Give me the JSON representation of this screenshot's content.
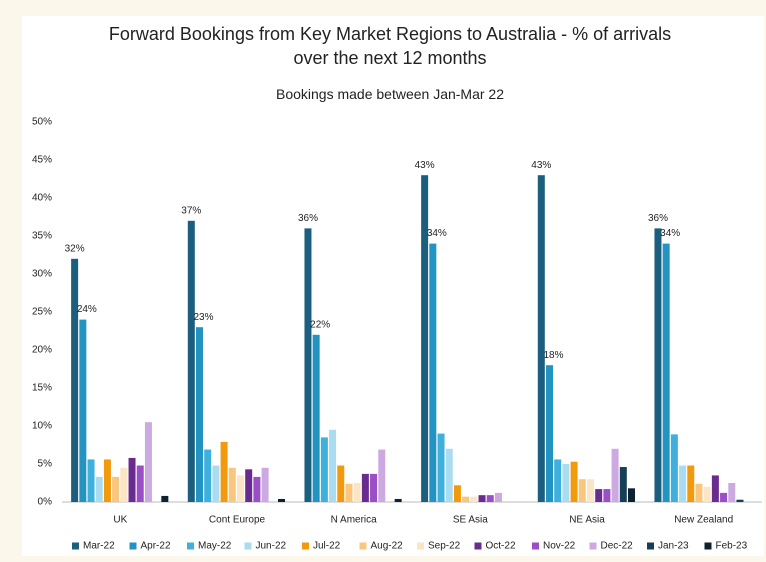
{
  "chart_data": {
    "type": "bar",
    "title": "Forward Bookings from Key Market Regions to Australia - % of arrivals over the next 12 months",
    "subtitle": "Bookings made between Jan-Mar 22",
    "categories": [
      "UK",
      "Cont Europe",
      "N America",
      "SE Asia",
      "NE Asia",
      "New Zealand"
    ],
    "ylim": [
      0,
      50
    ],
    "yticks": [
      {
        "value": 0,
        "label": "0%"
      },
      {
        "value": 5,
        "label": "5%"
      },
      {
        "value": 10,
        "label": "10%"
      },
      {
        "value": 15,
        "label": "15%"
      },
      {
        "value": 20,
        "label": "20%"
      },
      {
        "value": 25,
        "label": "25%"
      },
      {
        "value": 30,
        "label": "30%"
      },
      {
        "value": 35,
        "label": "35%"
      },
      {
        "value": 40,
        "label": "40%"
      },
      {
        "value": 45,
        "label": "45%"
      },
      {
        "value": 50,
        "label": "50%"
      }
    ],
    "grid": false,
    "legend": "bottom",
    "series": [
      {
        "name": "Mar-22",
        "color": "#1b5e7e",
        "values": [
          32,
          37,
          36,
          43,
          43,
          36
        ],
        "value_labels": [
          "32%",
          "37%",
          "36%",
          "43%",
          "43%",
          "36%"
        ]
      },
      {
        "name": "Apr-22",
        "color": "#2394c2",
        "values": [
          24,
          23,
          22,
          34,
          18,
          34
        ],
        "value_labels": [
          "24%",
          "23%",
          "22%",
          "34%",
          "18%",
          "34%"
        ]
      },
      {
        "name": "May-22",
        "color": "#3fb0dc",
        "values": [
          5.6,
          6.9,
          8.5,
          9,
          5.6,
          8.9
        ]
      },
      {
        "name": "Jun-22",
        "color": "#a9dcf0",
        "values": [
          3.3,
          4.8,
          9.5,
          7,
          5,
          4.8
        ]
      },
      {
        "name": "Jul-22",
        "color": "#f29a0e",
        "values": [
          5.6,
          7.9,
          4.8,
          2.2,
          5.3,
          4.8
        ]
      },
      {
        "name": "Aug-22",
        "color": "#f8c67c",
        "values": [
          3.3,
          4.5,
          2.4,
          0.7,
          3,
          2.4
        ]
      },
      {
        "name": "Sep-22",
        "color": "#fbe5c4",
        "values": [
          4.5,
          3.5,
          2.5,
          0.7,
          3,
          2
        ]
      },
      {
        "name": "Oct-22",
        "color": "#6a2b8f",
        "values": [
          5.8,
          4.3,
          3.7,
          0.9,
          1.7,
          3.5
        ]
      },
      {
        "name": "Nov-22",
        "color": "#9a4fc4",
        "values": [
          4.8,
          3.3,
          3.7,
          0.9,
          1.7,
          1.2
        ]
      },
      {
        "name": "Dec-22",
        "color": "#cda9e2",
        "values": [
          10.5,
          4.5,
          6.9,
          1.2,
          7,
          2.5
        ]
      },
      {
        "name": "Jan-23",
        "color": "#163f57",
        "values": [
          0,
          0,
          0,
          0,
          4.6,
          0.3
        ]
      },
      {
        "name": "Feb-23",
        "color": "#0c2233",
        "values": [
          0.8,
          0.4,
          0.4,
          0,
          1.8,
          0
        ]
      }
    ]
  }
}
